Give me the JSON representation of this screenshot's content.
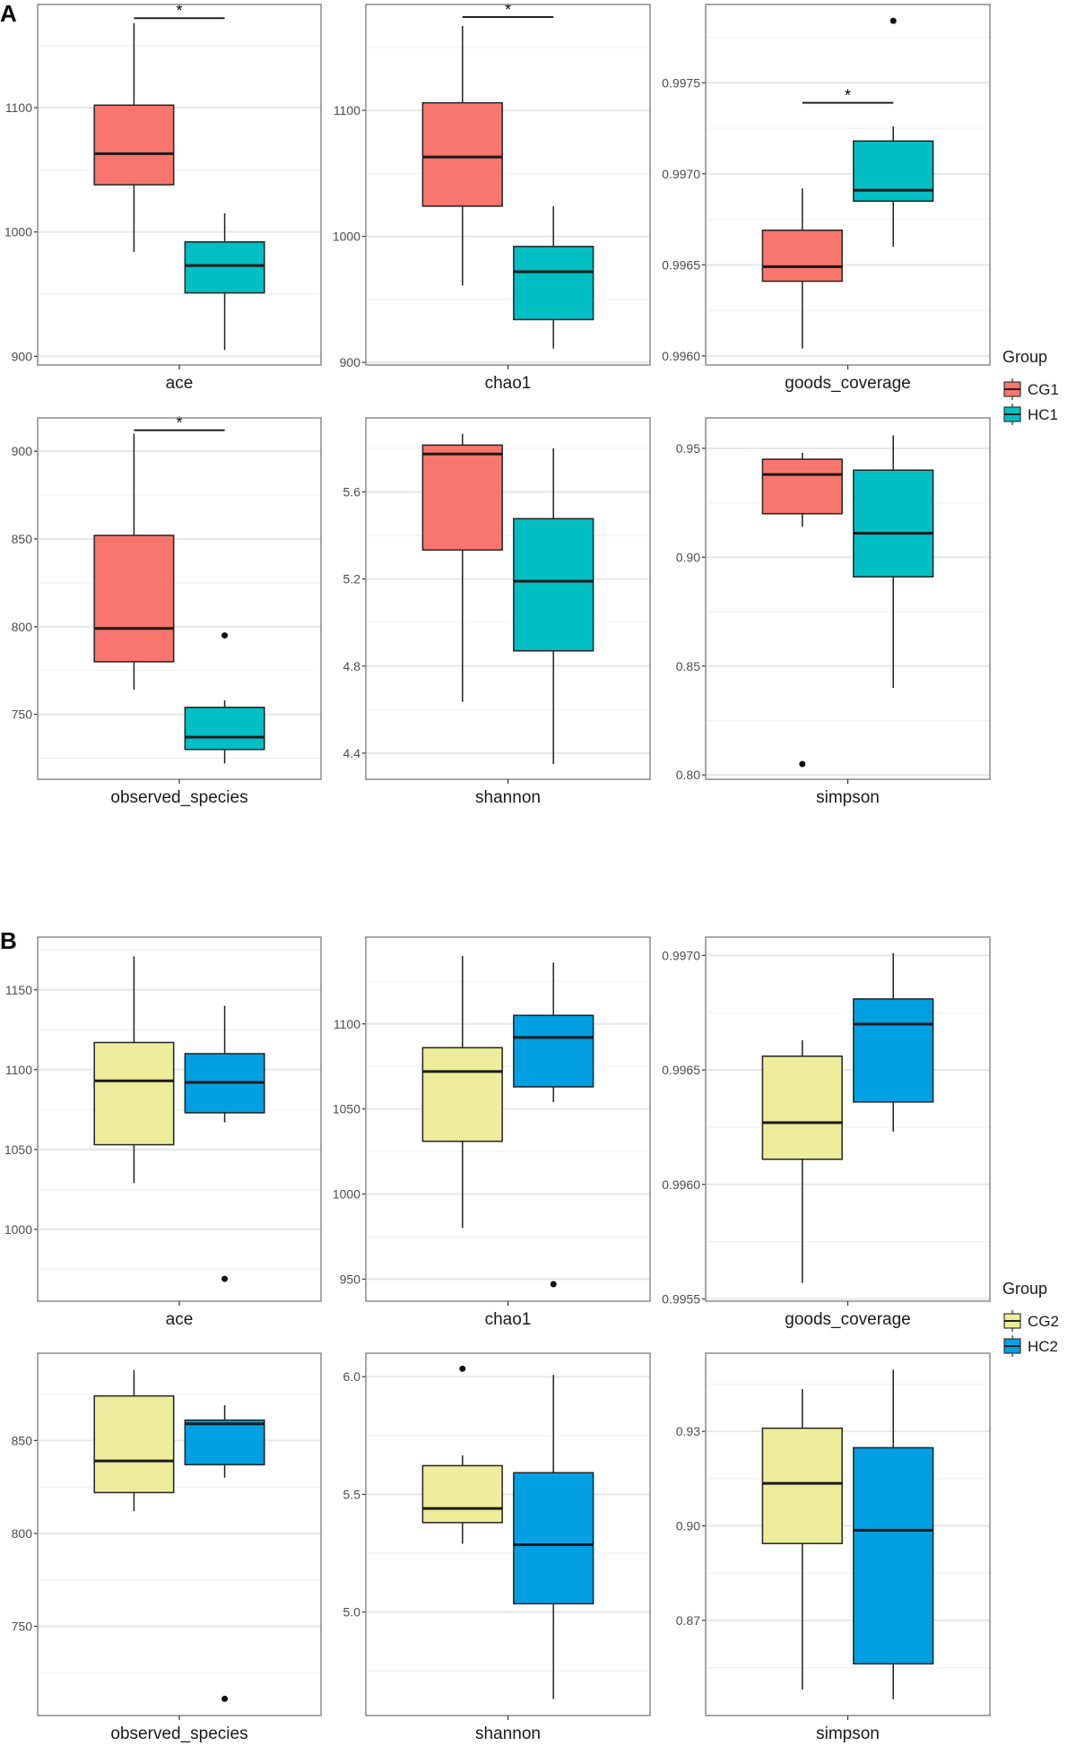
{
  "chart_data": [
    {
      "panel_label": "A",
      "type": "box",
      "legend": {
        "title": "Group",
        "position": "right",
        "entries": [
          {
            "name": "CG1",
            "color": "#F8766D"
          },
          {
            "name": "HC1",
            "color": "#00BFC4"
          }
        ]
      },
      "grid": true,
      "facets": [
        {
          "label": "ace",
          "ylim": [
            893,
            1183
          ],
          "ticks": [
            "900",
            "1000",
            "1100"
          ],
          "tick_values": [
            900,
            1000,
            1100
          ],
          "boxes": [
            {
              "group": "CG1",
              "min": 984,
              "q1": 1038,
              "median": 1063,
              "q3": 1102,
              "max": 1168,
              "outliers": []
            },
            {
              "group": "HC1",
              "min": 905,
              "q1": 951,
              "median": 973,
              "q3": 992,
              "max": 1015,
              "outliers": []
            }
          ],
          "significance": {
            "label": "*",
            "y": 1172
          }
        },
        {
          "label": "chao1",
          "ylim": [
            898,
            1184
          ],
          "ticks": [
            "900",
            "1000",
            "1100"
          ],
          "tick_values": [
            900,
            1000,
            1100
          ],
          "boxes": [
            {
              "group": "CG1",
              "min": 961,
              "q1": 1024,
              "median": 1063,
              "q3": 1106,
              "max": 1167,
              "outliers": []
            },
            {
              "group": "HC1",
              "min": 911,
              "q1": 934,
              "median": 972,
              "q3": 992,
              "max": 1024,
              "outliers": []
            }
          ],
          "significance": {
            "label": "*",
            "y": 1174
          }
        },
        {
          "label": "goods_coverage",
          "ylim": [
            0.99595,
            0.99793
          ],
          "ticks": [
            "0.9960",
            "0.9965",
            "0.9970",
            "0.9975"
          ],
          "tick_values": [
            0.996,
            0.9965,
            0.997,
            0.9975
          ],
          "boxes": [
            {
              "group": "CG1",
              "min": 0.99604,
              "q1": 0.99641,
              "median": 0.99649,
              "q3": 0.99669,
              "max": 0.99692,
              "outliers": []
            },
            {
              "group": "HC1",
              "min": 0.9966,
              "q1": 0.99685,
              "median": 0.99691,
              "q3": 0.99718,
              "max": 0.99726,
              "outliers": [
                0.99784
              ]
            }
          ],
          "significance": {
            "label": "*",
            "y": 0.99739
          }
        },
        {
          "label": "observed_species",
          "ylim": [
            713,
            919
          ],
          "ticks": [
            "750",
            "800",
            "850",
            "900"
          ],
          "tick_values": [
            750,
            800,
            850,
            900
          ],
          "boxes": [
            {
              "group": "CG1",
              "min": 764,
              "q1": 780,
              "median": 799,
              "q3": 852,
              "max": 910,
              "outliers": []
            },
            {
              "group": "HC1",
              "min": 722,
              "q1": 730,
              "median": 737,
              "q3": 754,
              "max": 758,
              "outliers": [
                795
              ]
            }
          ],
          "significance": {
            "label": "*",
            "y": 912
          }
        },
        {
          "label": "shannon",
          "ylim": [
            4.28,
            5.94
          ],
          "ticks": [
            "4.4",
            "4.8",
            "5.2",
            "5.6"
          ],
          "tick_values": [
            4.4,
            4.8,
            5.2,
            5.6
          ],
          "boxes": [
            {
              "group": "CG1",
              "min": 4.636,
              "q1": 5.333,
              "median": 5.774,
              "q3": 5.815,
              "max": 5.867,
              "outliers": []
            },
            {
              "group": "HC1",
              "min": 4.35,
              "q1": 4.87,
              "median": 5.19,
              "q3": 5.477,
              "max": 5.8,
              "outliers": []
            }
          ]
        },
        {
          "label": "simpson",
          "ylim": [
            0.798,
            0.964
          ],
          "ticks": [
            "0.80",
            "0.85",
            "0.90",
            "0.95"
          ],
          "tick_values": [
            0.8,
            0.85,
            0.9,
            0.95
          ],
          "boxes": [
            {
              "group": "CG1",
              "min": 0.914,
              "q1": 0.92,
              "median": 0.938,
              "q3": 0.945,
              "max": 0.948,
              "outliers": [
                0.805
              ]
            },
            {
              "group": "HC1",
              "min": 0.84,
              "q1": 0.891,
              "median": 0.911,
              "q3": 0.94,
              "max": 0.956,
              "outliers": []
            }
          ]
        }
      ]
    },
    {
      "panel_label": "B",
      "type": "box",
      "legend": {
        "title": "Group",
        "position": "right",
        "entries": [
          {
            "name": "CG2",
            "color": "#EDED9B"
          },
          {
            "name": "HC2",
            "color": "#00A0E3"
          }
        ]
      },
      "grid": true,
      "facets": [
        {
          "label": "ace",
          "ylim": [
            955,
            1183
          ],
          "ticks": [
            "1000",
            "1050",
            "1100",
            "1150"
          ],
          "tick_values": [
            1000,
            1050,
            1100,
            1150
          ],
          "boxes": [
            {
              "group": "CG2",
              "min": 1029,
              "q1": 1053,
              "median": 1093,
              "q3": 1117,
              "max": 1171,
              "outliers": []
            },
            {
              "group": "HC2",
              "min": 1067,
              "q1": 1073,
              "median": 1092,
              "q3": 1110,
              "max": 1140,
              "outliers": [
                969
              ]
            }
          ]
        },
        {
          "label": "chao1",
          "ylim": [
            937,
            1151
          ],
          "ticks": [
            "950",
            "1000",
            "1050",
            "1100"
          ],
          "tick_values": [
            950,
            1000,
            1050,
            1100
          ],
          "boxes": [
            {
              "group": "CG2",
              "min": 980,
              "q1": 1031,
              "median": 1072,
              "q3": 1086,
              "max": 1140,
              "outliers": []
            },
            {
              "group": "HC2",
              "min": 1054,
              "q1": 1063,
              "median": 1092,
              "q3": 1105,
              "max": 1136,
              "outliers": [
                947
              ]
            }
          ]
        },
        {
          "label": "goods_coverage",
          "ylim": [
            0.99549,
            0.99708
          ],
          "ticks": [
            "0.9955",
            "0.9960",
            "0.9965",
            "0.9970"
          ],
          "tick_values": [
            0.9955,
            0.996,
            0.9965,
            0.997
          ],
          "boxes": [
            {
              "group": "CG2",
              "min": 0.99557,
              "q1": 0.99611,
              "median": 0.99627,
              "q3": 0.99656,
              "max": 0.99663,
              "outliers": []
            },
            {
              "group": "HC2",
              "min": 0.99623,
              "q1": 0.99636,
              "median": 0.9967,
              "q3": 0.99681,
              "max": 0.99701,
              "outliers": []
            }
          ]
        },
        {
          "label": "observed_species",
          "ylim": [
            702,
            897
          ],
          "ticks": [
            "750",
            "800",
            "850"
          ],
          "tick_values": [
            750,
            800,
            850
          ],
          "boxes": [
            {
              "group": "CG2",
              "min": 812,
              "q1": 822,
              "median": 839,
              "q3": 874,
              "max": 888,
              "outliers": []
            },
            {
              "group": "HC2",
              "min": 830,
              "q1": 837,
              "median": 859,
              "q3": 861,
              "max": 869,
              "outliers": [
                711
              ]
            }
          ]
        },
        {
          "label": "shannon",
          "ylim": [
            4.56,
            6.1
          ],
          "ticks": [
            "5.0",
            "5.5",
            "6.0"
          ],
          "tick_values": [
            5.0,
            5.5,
            6.0
          ],
          "boxes": [
            {
              "group": "CG2",
              "min": 5.29,
              "q1": 5.38,
              "median": 5.44,
              "q3": 5.622,
              "max": 5.666,
              "outliers": [
                6.034
              ]
            },
            {
              "group": "HC2",
              "min": 4.63,
              "q1": 5.035,
              "median": 5.286,
              "q3": 5.592,
              "max": 6.008,
              "outliers": []
            }
          ]
        },
        {
          "label": "simpson",
          "ylim": [
            0.8398,
            0.9548
          ],
          "ticks": [
            "0.87",
            "0.90",
            "0.93"
          ],
          "tick_values": [
            0.87,
            0.9,
            0.93
          ],
          "boxes": [
            {
              "group": "CG2",
              "min": 0.848,
              "q1": 0.8944,
              "median": 0.9135,
              "q3": 0.931,
              "max": 0.9434,
              "outliers": []
            },
            {
              "group": "HC2",
              "min": 0.845,
              "q1": 0.8562,
              "median": 0.8986,
              "q3": 0.9248,
              "max": 0.9496,
              "outliers": []
            }
          ]
        }
      ]
    }
  ]
}
